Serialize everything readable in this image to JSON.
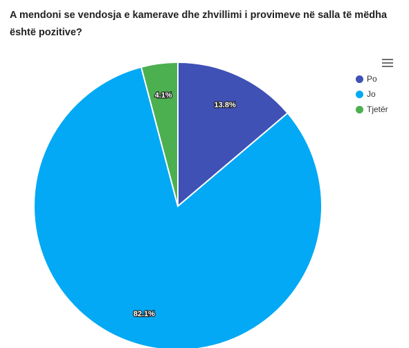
{
  "title": "A mendoni se vendosja e kamerave dhe zhvillimi i provimeve në salla të mëdha është pozitive?",
  "menu_icon": "hamburger-menu-icon",
  "colors": {
    "Po": "#3f51b5",
    "Jo": "#03a9f4",
    "Tjetër": "#4caf50"
  },
  "chart_data": {
    "type": "pie",
    "title": "A mendoni se vendosja e kamerave dhe zhvillimi i provimeve në salla të mëdha është pozitive?",
    "categories": [
      "Po",
      "Jo",
      "Tjetër"
    ],
    "values": [
      13.8,
      82.1,
      4.1
    ],
    "labels": [
      "13.8%",
      "82.1%",
      "4.1%"
    ],
    "legend_position": "top-right"
  }
}
